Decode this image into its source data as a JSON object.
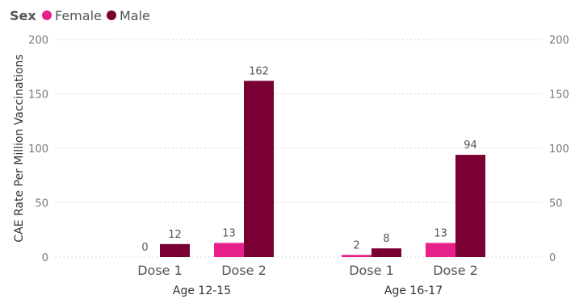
{
  "chart_data": {
    "type": "bar",
    "legend": {
      "title": "Sex",
      "placement": "top-left",
      "items": [
        {
          "label": "Female",
          "color": "#e8208c"
        },
        {
          "label": "Male",
          "color": "#7a0034"
        }
      ]
    },
    "ylabel": "CAE Rate Per Million Vaccinations",
    "ylim": [
      0,
      200
    ],
    "yticks": [
      "0",
      "50",
      "100",
      "150",
      "200"
    ],
    "grid": true,
    "secondary_axis": true,
    "groups": [
      {
        "label": "Age 12-15",
        "categories": [
          {
            "label": "Dose 1",
            "values": [
              0,
              12
            ]
          },
          {
            "label": "Dose 2",
            "values": [
              13,
              162
            ]
          }
        ]
      },
      {
        "label": "Age 16-17",
        "categories": [
          {
            "label": "Dose 1",
            "values": [
              2,
              8
            ]
          },
          {
            "label": "Dose 2",
            "values": [
              13,
              94
            ]
          }
        ]
      }
    ],
    "series": [
      {
        "name": "Female",
        "color": "#e8208c"
      },
      {
        "name": "Male",
        "color": "#7a0034"
      }
    ]
  }
}
